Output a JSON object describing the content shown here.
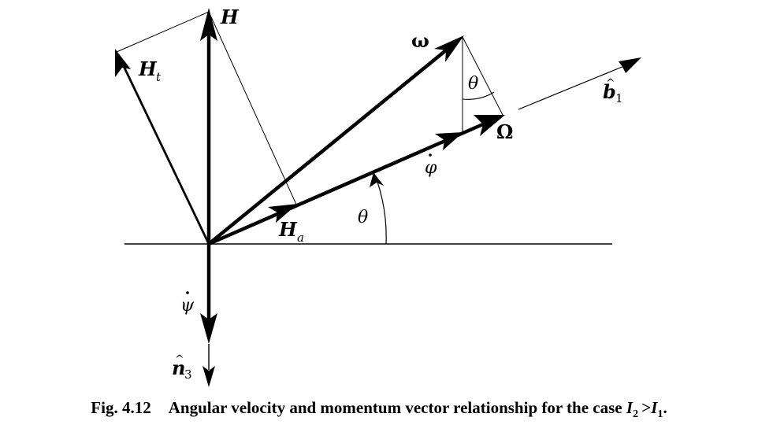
{
  "figure": {
    "labels": {
      "H": "H",
      "H_t": "H",
      "H_t_sub": "t",
      "H_a": "H",
      "H_a_sub": "a",
      "omega": "ω",
      "Omega": "Ω",
      "b1_hat": "b",
      "b1_sub": "1",
      "phi_dot": "φ",
      "psi_dot": "ψ",
      "n3_hat": "n",
      "n3_sub": "3",
      "theta_lower": "θ",
      "theta_upper": "θ"
    },
    "caption": {
      "number": "Fig. 4.12",
      "text": "Angular velocity and momentum vector relationship for the case",
      "cond_a": "I",
      "cond_a_sub": "2",
      "cond_op": ">",
      "cond_b": "I",
      "cond_b_sub": "1",
      "cond_end": "."
    }
  }
}
